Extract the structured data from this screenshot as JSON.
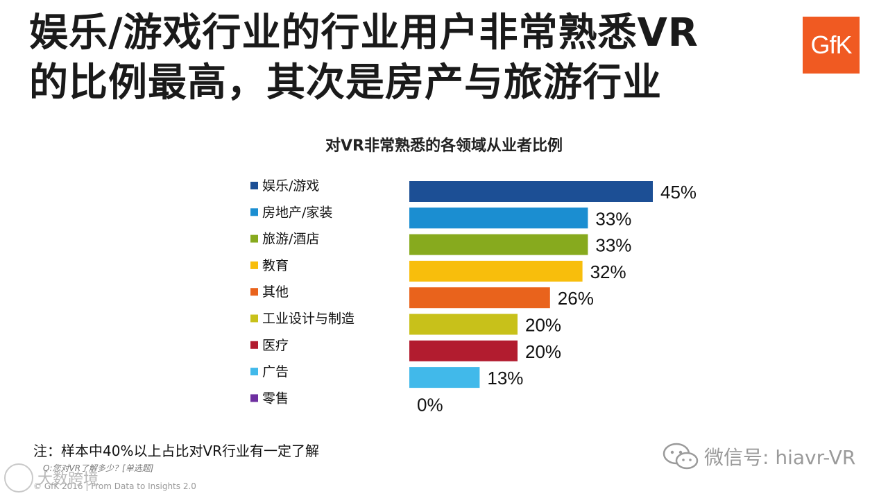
{
  "headline": {
    "line1": "娱乐/游戏行业的行业用户非常熟悉VR",
    "line2": "的比例最高，其次是房产与旅游行业"
  },
  "logo_text": "GfK",
  "chart_data": {
    "type": "bar",
    "orientation": "horizontal",
    "title": "对VR非常熟悉的各领域从业者比例",
    "categories": [
      "娱乐/游戏",
      "房地产/家装",
      "旅游/酒店",
      "教育",
      "其他",
      "工业设计与制造",
      "医疗",
      "广告",
      "零售"
    ],
    "values": [
      45,
      33,
      33,
      32,
      26,
      20,
      20,
      13,
      0
    ],
    "value_labels": [
      "45%",
      "33%",
      "33%",
      "32%",
      "26%",
      "20%",
      "20%",
      "13%",
      "0%"
    ],
    "colors": [
      "#1c4f95",
      "#1b8ed1",
      "#87aa1e",
      "#f8be0c",
      "#e9631c",
      "#c8c11a",
      "#b21c2f",
      "#41b9ea",
      "#6e2fa0"
    ],
    "xlim": [
      0,
      45
    ],
    "legend": "left",
    "grid": false
  },
  "note": "注：样本中40%以上占比对VR行业有一定了解",
  "question": "Q:您对VR了解多少？[单选题]",
  "copyright": "© GfK 2016 | From Data to Insights 2.0",
  "watermark_corner": "大数跨境",
  "watermark_wechat": "微信号: hiavr-VR"
}
